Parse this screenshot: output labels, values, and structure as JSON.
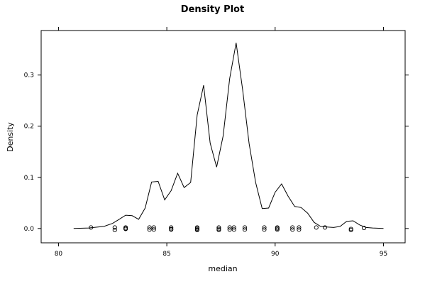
{
  "chart_data": {
    "type": "line",
    "title": "Density Plot",
    "xlabel": "median",
    "ylabel": "Density",
    "xlim": [
      79.2,
      96.0
    ],
    "ylim": [
      -0.028,
      0.387
    ],
    "x_ticks": [
      80,
      85,
      90,
      95
    ],
    "x_tick_labels": [
      "80",
      "85",
      "90",
      "95"
    ],
    "y_ticks": [
      0.0,
      0.1,
      0.2,
      0.3
    ],
    "y_tick_labels": [
      "0.0",
      "0.1",
      "0.2",
      "0.3"
    ],
    "grid": false,
    "series": [
      {
        "x": [
          80.7,
          81.4,
          82.1,
          82.5,
          82.8,
          83.1,
          83.4,
          83.7,
          84.0,
          84.3,
          84.6,
          84.9,
          85.2,
          85.5,
          85.8,
          86.1,
          86.4,
          86.7,
          87.0,
          87.3,
          87.6,
          87.9,
          88.2,
          88.5,
          88.8,
          89.1,
          89.4,
          89.7,
          90.0,
          90.3,
          90.6,
          90.9,
          91.2,
          91.5,
          91.8,
          92.1,
          92.4,
          92.7,
          93.0,
          93.3,
          93.6,
          93.9,
          94.2,
          94.5,
          95.0
        ],
        "y": [
          0.0,
          0.001,
          0.004,
          0.01,
          0.018,
          0.026,
          0.025,
          0.018,
          0.04,
          0.091,
          0.092,
          0.056,
          0.074,
          0.108,
          0.08,
          0.09,
          0.222,
          0.28,
          0.167,
          0.12,
          0.181,
          0.293,
          0.363,
          0.271,
          0.166,
          0.09,
          0.039,
          0.04,
          0.071,
          0.087,
          0.063,
          0.043,
          0.041,
          0.03,
          0.012,
          0.004,
          0.003,
          0.002,
          0.004,
          0.014,
          0.015,
          0.007,
          0.002,
          0.001,
          0.0
        ]
      },
      {
        "type": "rug",
        "x": [
          81.5,
          82.6,
          82.6,
          83.1,
          83.1,
          83.1,
          84.2,
          84.2,
          84.4,
          84.4,
          85.2,
          85.2,
          85.2,
          86.4,
          86.4,
          86.4,
          86.4,
          87.4,
          87.4,
          87.4,
          87.9,
          87.9,
          88.1,
          88.1,
          88.6,
          88.6,
          89.5,
          89.5,
          90.1,
          90.1,
          90.1,
          90.8,
          90.8,
          91.1,
          91.1,
          91.9,
          92.3,
          93.5,
          93.5,
          94.1
        ],
        "y": [
          0.002,
          0.002,
          -0.003,
          0.002,
          -0.001,
          0.0,
          0.002,
          -0.002,
          0.002,
          -0.002,
          0.002,
          -0.001,
          -0.002,
          0.002,
          0.0,
          -0.002,
          -0.003,
          0.002,
          -0.001,
          -0.003,
          0.002,
          -0.002,
          0.002,
          -0.002,
          0.002,
          -0.002,
          0.002,
          -0.002,
          0.002,
          0.0,
          -0.002,
          0.002,
          -0.002,
          0.002,
          -0.002,
          0.002,
          0.002,
          -0.001,
          -0.003,
          0.001
        ]
      }
    ]
  }
}
